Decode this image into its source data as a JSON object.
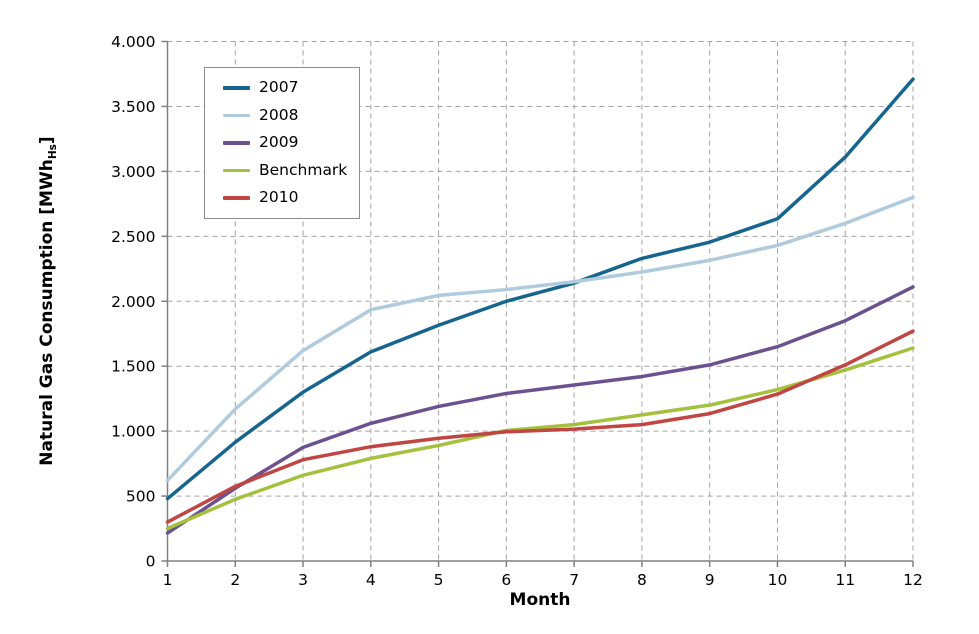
{
  "chart_data": {
    "type": "line",
    "title": "",
    "xlabel": "Month",
    "ylabel_main": "Natural Gas Consumption [MWh",
    "ylabel_sub": "Hs",
    "ylabel_close": "]",
    "x": [
      1,
      2,
      3,
      4,
      5,
      6,
      7,
      8,
      9,
      10,
      11,
      12
    ],
    "xtick_labels": [
      "1",
      "2",
      "3",
      "4",
      "5",
      "6",
      "7",
      "8",
      "9",
      "10",
      "11",
      "12"
    ],
    "ylim": [
      0,
      4000
    ],
    "ytick_step": 500,
    "ytick_values": [
      0,
      500,
      1000,
      1500,
      2000,
      2500,
      3000,
      3500,
      4000
    ],
    "ytick_labels": [
      "0",
      "500",
      "1.000",
      "1.500",
      "2.000",
      "2.500",
      "3.000",
      "3.500",
      "4.000"
    ],
    "grid": "dashed horizontal and vertical",
    "legend_position": "top-left inside plot",
    "series": [
      {
        "name": "2007",
        "color": "#17658E",
        "values": [
          480,
          915,
          1300,
          1610,
          1815,
          2000,
          2140,
          2330,
          2455,
          2635,
          3110,
          3710
        ]
      },
      {
        "name": "2008",
        "color": "#AFCBDD",
        "values": [
          620,
          1170,
          1620,
          1935,
          2045,
          2090,
          2150,
          2225,
          2315,
          2430,
          2600,
          2800
        ]
      },
      {
        "name": "2009",
        "color": "#6C5190",
        "values": [
          215,
          560,
          875,
          1060,
          1190,
          1290,
          1355,
          1420,
          1510,
          1650,
          1850,
          2110
        ]
      },
      {
        "name": "Benchmark",
        "color": "#A3C13C",
        "values": [
          250,
          475,
          660,
          790,
          890,
          1005,
          1050,
          1125,
          1200,
          1320,
          1470,
          1640
        ]
      },
      {
        "name": "2010",
        "color": "#C04543",
        "values": [
          300,
          575,
          780,
          880,
          945,
          995,
          1015,
          1050,
          1135,
          1285,
          1510,
          1770
        ]
      }
    ]
  },
  "colors": {
    "background": "#FFFFFF",
    "axis": "#808080",
    "grid": "#A3A3A3",
    "text": "#000000",
    "legend_border": "#8C8C8C"
  }
}
